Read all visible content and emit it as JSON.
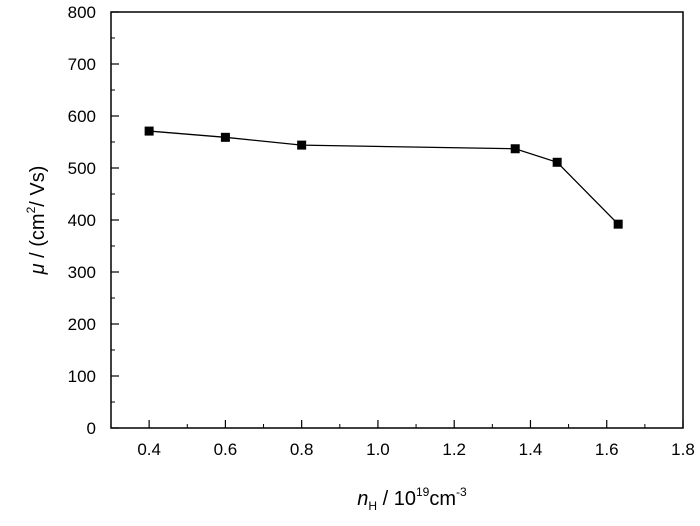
{
  "chart_data": {
    "type": "line",
    "xlabel": {
      "symbol": "n",
      "subscript": "H",
      "text": " / 10",
      "exponent": "19",
      "unit": "cm",
      "unit_exponent": "-3"
    },
    "ylabel": {
      "symbol": "μ",
      "text_before": " / (cm",
      "exponent": "2",
      "text_after": "/ Vs)"
    },
    "xlim": [
      0.3,
      1.8
    ],
    "ylim": [
      0,
      800
    ],
    "x_ticks": [
      "0.4",
      "0.6",
      "0.8",
      "1.0",
      "1.2",
      "1.4",
      "1.6",
      "1.8"
    ],
    "y_ticks": [
      "0",
      "100",
      "200",
      "300",
      "400",
      "500",
      "600",
      "700",
      "800"
    ],
    "series": [
      {
        "marker": "square",
        "color": "#000000",
        "x": [
          0.4,
          0.6,
          0.8,
          1.36,
          1.47,
          1.63
        ],
        "y": [
          571,
          559,
          544,
          537,
          511,
          392
        ]
      }
    ],
    "grid": false,
    "legend": "none"
  }
}
